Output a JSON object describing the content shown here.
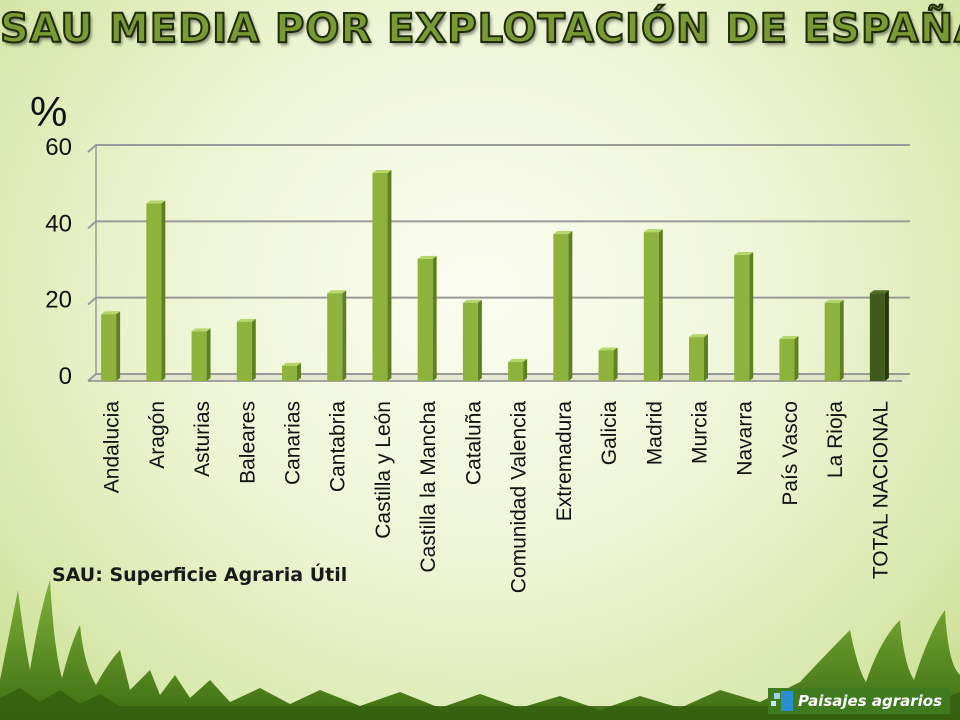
{
  "title": "SAU MEDIA POR EXPLOTACIÓN  DE ESPAÑA",
  "footnote": "SAU: Superficie Agraria Útil",
  "brand": "Paisajes agrarios",
  "chart_data": {
    "type": "bar",
    "ylabel": "%",
    "ylim": [
      0,
      60
    ],
    "yticks": [
      0,
      20,
      40,
      60
    ],
    "grid": true,
    "categories": [
      "Andalucia",
      "Aragón",
      "Asturias",
      "Baleares",
      "Canarias",
      "Cantabria",
      "Castilla y León",
      "Castilla la Mancha",
      "Cataluña",
      "Comunidad Valencia",
      "Extremadura",
      "Galicia",
      "Madrid",
      "Murcia",
      "Navarra",
      "País Vasco",
      "La Rioja",
      "TOTAL NACIONAL"
    ],
    "values": [
      17.5,
      46.5,
      13,
      15.5,
      4,
      23,
      54.5,
      32,
      20.5,
      5,
      38.5,
      8,
      39,
      11.5,
      33,
      11,
      20.5,
      23
    ],
    "colors": {
      "bar": "#8db33d",
      "bar_light": "#b6d56a",
      "bar_side": "#5f7f22",
      "highlight": "#3f5a1a",
      "highlight_side": "#26380c",
      "grid": "#9a9a9a"
    }
  }
}
